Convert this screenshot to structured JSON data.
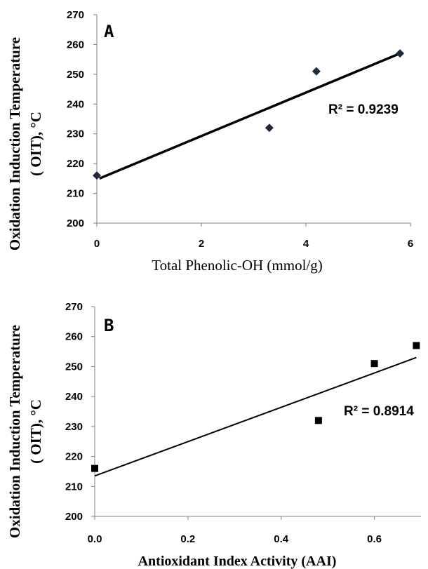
{
  "chart_data": [
    {
      "type": "scatter",
      "panel_label": "A",
      "xlabel": "Total Phenolic-OH (mmol/g)",
      "ylabel_line1": "Oxidation Induction Temperature",
      "ylabel_line2": "( OIT), °C",
      "xlim": [
        0,
        6
      ],
      "ylim": [
        200,
        270
      ],
      "x_ticks": [
        "0",
        "2",
        "4",
        "6"
      ],
      "y_ticks": [
        "200",
        "210",
        "220",
        "230",
        "240",
        "250",
        "260",
        "270"
      ],
      "marker": "diamond",
      "series": [
        {
          "x": [
            0,
            3.3,
            4.2,
            5.8
          ],
          "y": [
            216,
            232,
            251,
            257
          ]
        }
      ],
      "trendline": {
        "type": "linear",
        "x": [
          0.05,
          5.8
        ],
        "y": [
          215,
          257
        ]
      },
      "r2_label": "R² = 0.9239"
    },
    {
      "type": "scatter",
      "panel_label": "B",
      "xlabel": "Antioxidant Index Activity (AAI)",
      "ylabel_line1": "Oxidation Induction Temperature",
      "ylabel_line2": "( OIT), °C",
      "xlim": [
        0,
        0.7
      ],
      "ylim": [
        200,
        270
      ],
      "x_ticks": [
        "0.0",
        "0.2",
        "0.4",
        "0.6"
      ],
      "y_ticks": [
        "200",
        "210",
        "220",
        "230",
        "240",
        "250",
        "260",
        "270"
      ],
      "marker": "square",
      "series": [
        {
          "x": [
            0,
            0.48,
            0.6,
            0.69
          ],
          "y": [
            216,
            232,
            251,
            257
          ]
        }
      ],
      "trendline": {
        "type": "linear",
        "x": [
          0,
          0.69
        ],
        "y": [
          213.5,
          253
        ]
      },
      "r2_label": "R² = 0.8914"
    }
  ]
}
